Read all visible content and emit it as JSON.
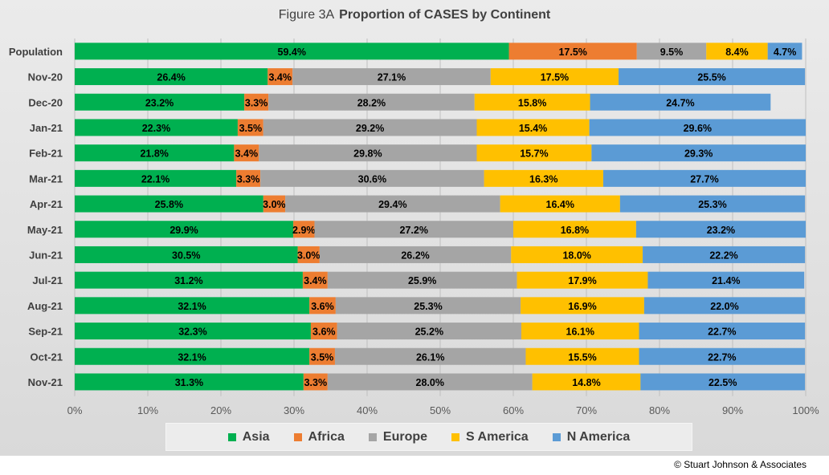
{
  "title": {
    "prefix": "Figure  3A",
    "main": "Proportion of CASES by Continent"
  },
  "copyright": "© Stuart Johnson & Associates",
  "chart_data": {
    "type": "bar",
    "orientation": "horizontal",
    "stacked": "100%",
    "title": "Figure 3A Proportion of CASES by Continent",
    "categories": [
      "Population",
      "Nov-20",
      "Dec-20",
      "Jan-21",
      "Feb-21",
      "Mar-21",
      "Apr-21",
      "May-21",
      "Jun-21",
      "Jul-21",
      "Aug-21",
      "Sep-21",
      "Oct-21",
      "Nov-21"
    ],
    "series": [
      {
        "name": "Asia",
        "color": "#00b050",
        "values": [
          59.4,
          26.4,
          23.2,
          22.3,
          21.8,
          22.1,
          25.8,
          29.9,
          30.5,
          31.2,
          32.1,
          32.3,
          32.1,
          31.3
        ]
      },
      {
        "name": "Africa",
        "color": "#ed7d31",
        "values": [
          17.5,
          3.4,
          3.3,
          3.5,
          3.4,
          3.3,
          3.0,
          2.9,
          3.0,
          3.4,
          3.6,
          3.6,
          3.5,
          3.3
        ]
      },
      {
        "name": "Europe",
        "color": "#a5a5a5",
        "values": [
          9.5,
          27.1,
          28.2,
          29.2,
          29.8,
          30.6,
          29.4,
          27.2,
          26.2,
          25.9,
          25.3,
          25.2,
          26.1,
          28.0
        ]
      },
      {
        "name": "S America",
        "color": "#ffc000",
        "values": [
          8.4,
          17.5,
          15.8,
          15.4,
          15.7,
          16.3,
          16.4,
          16.8,
          18.0,
          17.9,
          16.9,
          16.1,
          15.5,
          14.8
        ]
      },
      {
        "name": "N America",
        "color": "#5b9bd5",
        "values": [
          4.7,
          25.5,
          24.7,
          29.6,
          29.3,
          27.7,
          25.3,
          23.2,
          22.2,
          21.4,
          22.0,
          22.7,
          22.7,
          22.5
        ]
      }
    ],
    "xlim": [
      0,
      100
    ],
    "x_ticks": [
      "0%",
      "10%",
      "20%",
      "30%",
      "40%",
      "50%",
      "60%",
      "70%",
      "80%",
      "90%",
      "100%"
    ],
    "grid": true,
    "legend_position": "bottom"
  }
}
